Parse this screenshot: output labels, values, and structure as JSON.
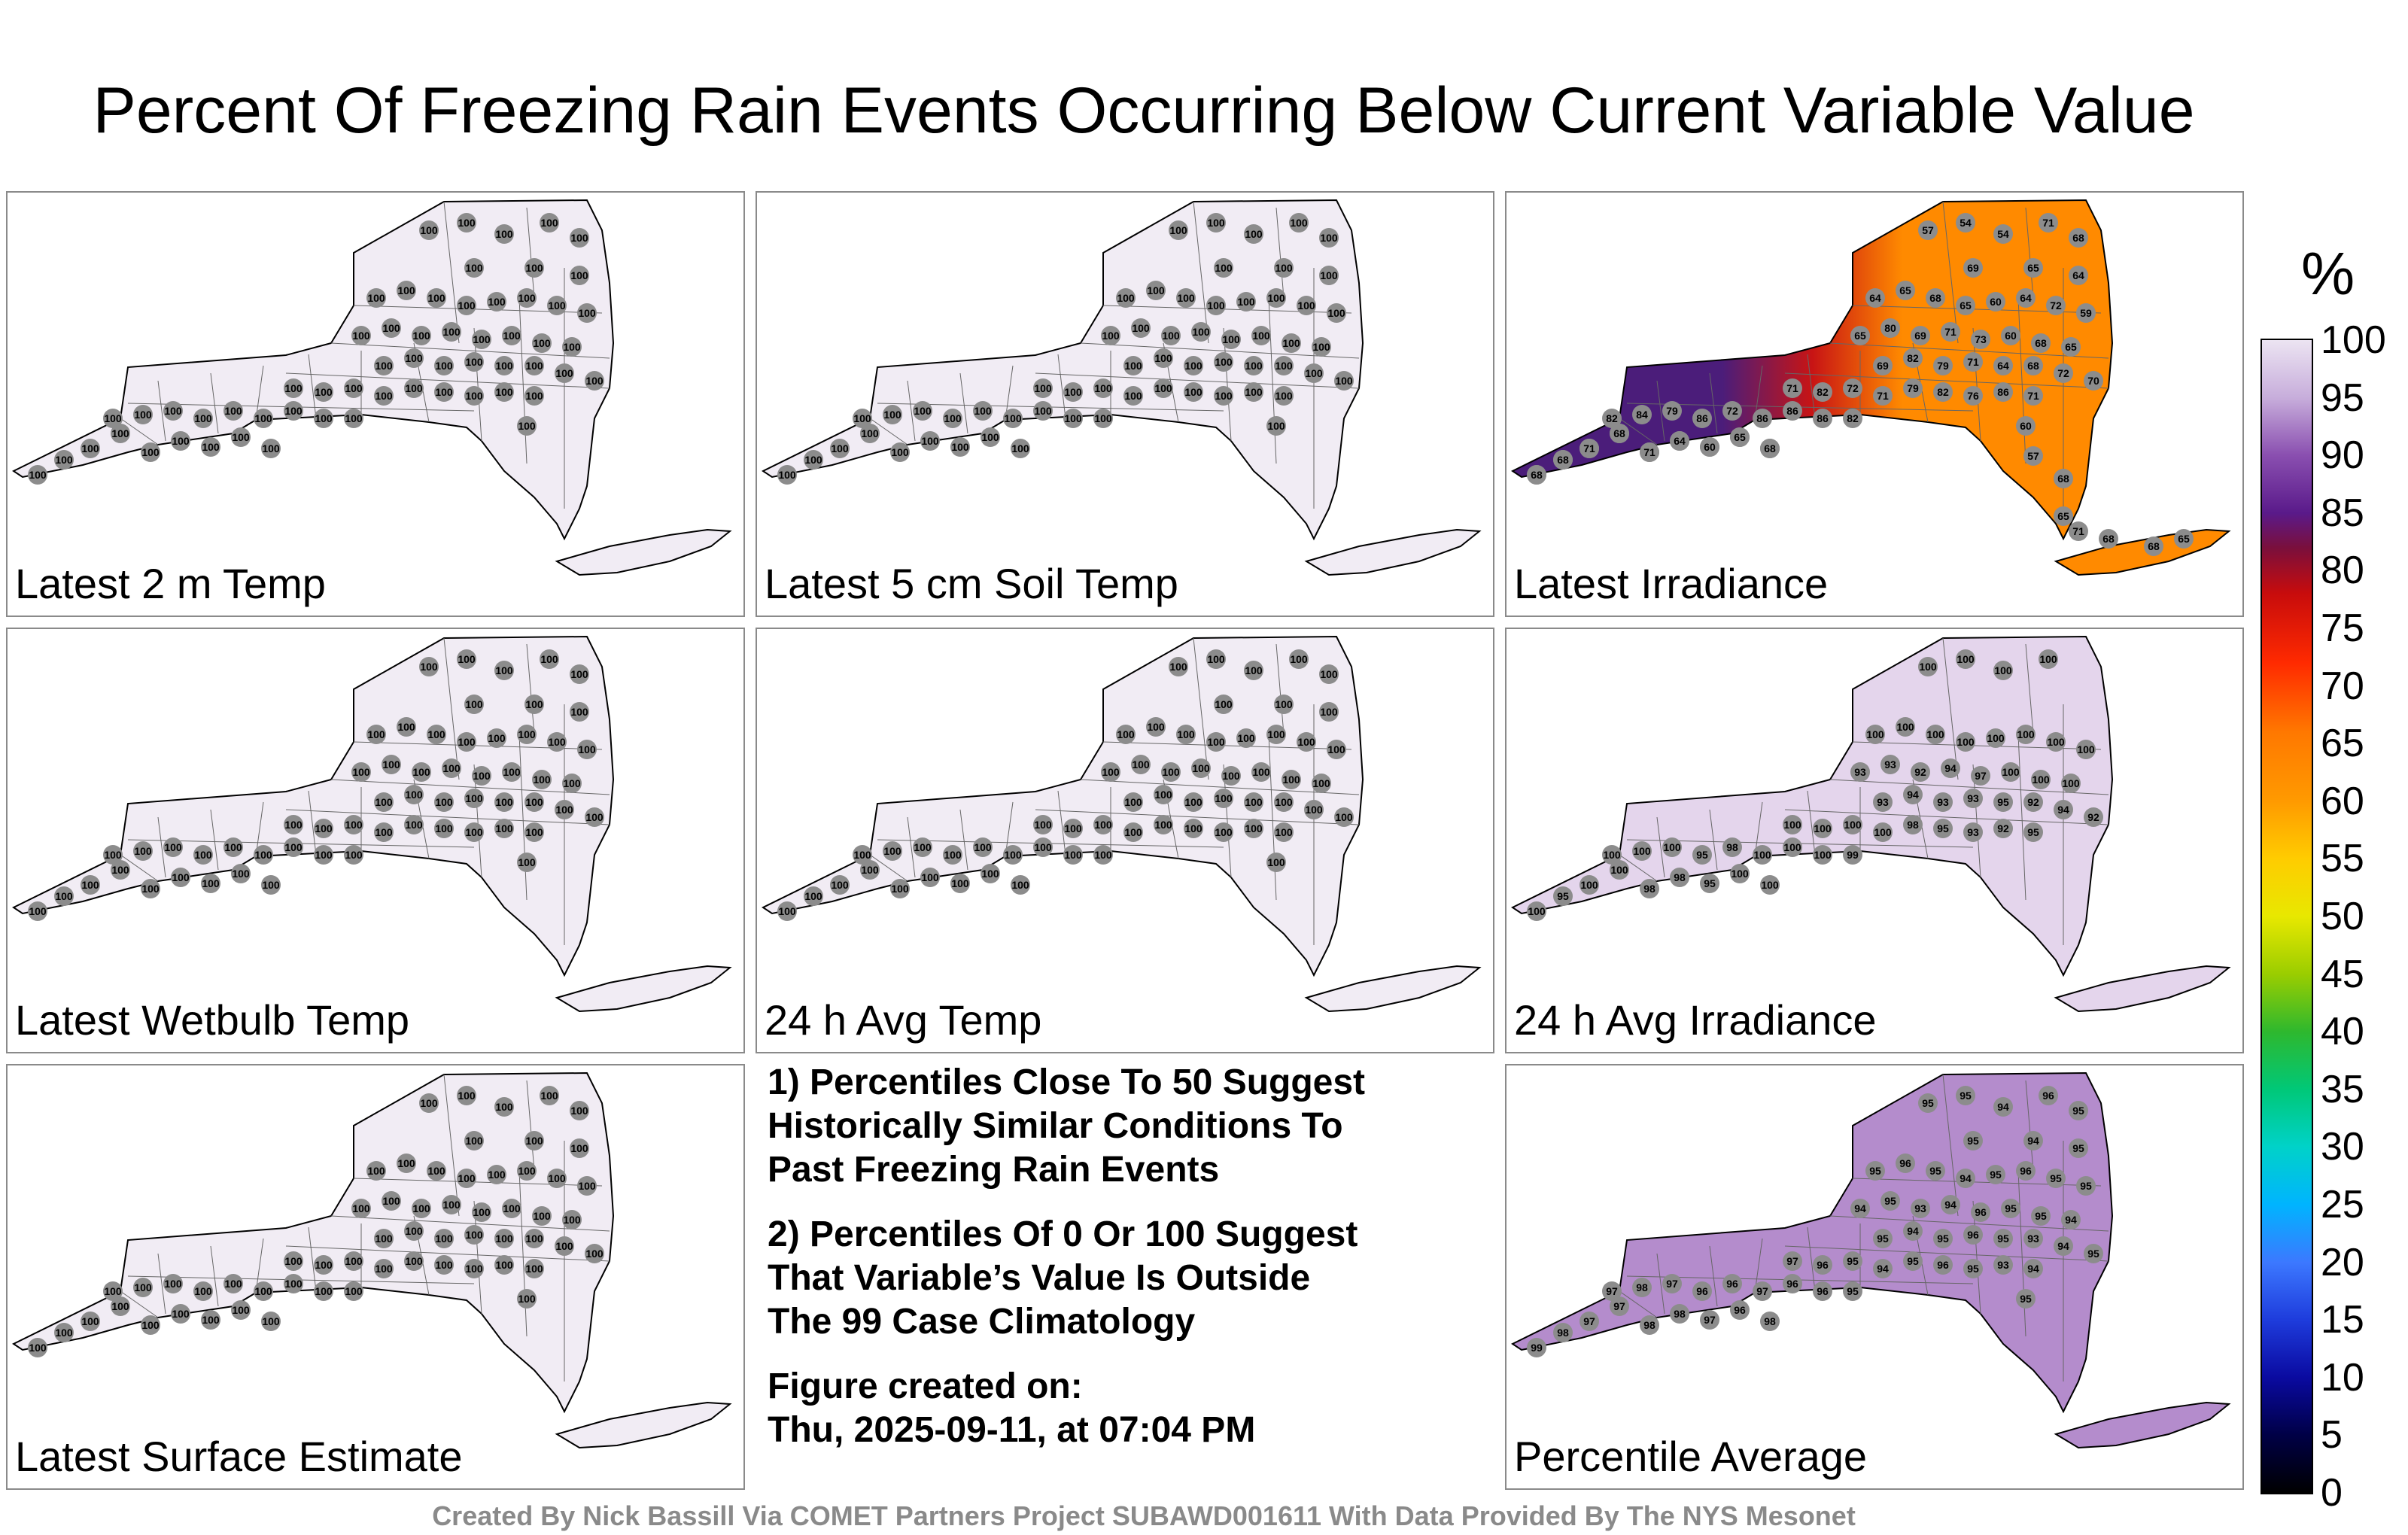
{
  "title": "Percent Of Freezing Rain Events Occurring Below Current Variable Value",
  "panels": [
    {
      "label": "Latest 2 m Temp",
      "fill": "#f1ecf4",
      "value_labels": [
        "100",
        "100",
        "100",
        "100",
        "100",
        "100",
        "100",
        "100",
        "100",
        "100",
        "100",
        "100",
        "100",
        "100",
        "100",
        "100",
        "100",
        "100",
        "100",
        "100",
        "100",
        "100",
        "100",
        "100",
        "100",
        "100",
        "100",
        "100",
        "100",
        "100",
        "100",
        "100",
        "100",
        "100",
        "100",
        "100",
        "100",
        "100",
        "100",
        "100",
        "100",
        "100",
        "100",
        "100",
        "100",
        "100",
        "100",
        "100",
        "100",
        "100",
        "100",
        "100",
        "100",
        "100",
        "100",
        "100",
        "100",
        "100",
        "100",
        "100"
      ]
    },
    {
      "label": "Latest 5 cm Soil Temp",
      "fill": "#f1ecf4",
      "value_labels": [
        "100",
        "100",
        "100",
        "100",
        "100",
        "100",
        "100",
        "100",
        "100",
        "100",
        "100",
        "100",
        "100",
        "100",
        "100",
        "100",
        "100",
        "100",
        "100",
        "100",
        "100",
        "100",
        "100",
        "100",
        "100",
        "100",
        "100",
        "100",
        "100",
        "100",
        "100",
        "100",
        "100",
        "100",
        "100",
        "100",
        "100",
        "100",
        "100",
        "100",
        "100",
        "100",
        "100",
        "100",
        "100",
        "100",
        "100",
        "100",
        "100",
        "100",
        "100",
        "100",
        "100",
        "100",
        "100",
        "100",
        "100",
        "100",
        "100",
        "100"
      ]
    },
    {
      "label": "Latest Irradiance",
      "fill": "#ff7a00",
      "value_labels": [
        "91",
        "89",
        "87",
        "89",
        "79",
        "89",
        "86",
        "86",
        "86",
        "82",
        "84",
        "79",
        "86",
        "72",
        "86",
        "86",
        "86",
        "82",
        "71",
        "82",
        "72",
        "71",
        "79",
        "82",
        "76",
        "86",
        "71",
        "69",
        "82",
        "79",
        "71",
        "64",
        "68",
        "72",
        "70",
        "65",
        "80",
        "69",
        "71",
        "73",
        "60",
        "68",
        "65",
        "64",
        "65",
        "68",
        "65",
        "60",
        "64",
        "72",
        "59",
        "57",
        "54",
        "54",
        "71",
        "68",
        "69",
        "65",
        "64",
        "60",
        "57",
        "68",
        "65",
        "71",
        "68",
        "68",
        "65",
        "68",
        "68",
        "71",
        "68",
        "71",
        "64",
        "60",
        "65",
        "68"
      ]
    },
    {
      "label": "Latest Wetbulb Temp",
      "fill": "#f1ecf4",
      "value_labels": [
        "100",
        "100",
        "100",
        "100",
        "100",
        "100",
        "100",
        "100",
        "100",
        "100",
        "100",
        "100",
        "100",
        "100",
        "100",
        "100",
        "100",
        "100",
        "100",
        "100",
        "100",
        "100",
        "100",
        "100",
        "100",
        "100",
        "100",
        "100",
        "100",
        "100",
        "100",
        "100",
        "100",
        "100",
        "100",
        "100",
        "100",
        "100",
        "100",
        "100",
        "100",
        "100",
        "100",
        "100",
        "100",
        "100",
        "100",
        "100",
        "100",
        "100",
        "100",
        "100",
        "100",
        "100",
        "100",
        "100",
        "100",
        "100",
        "100",
        "100"
      ]
    },
    {
      "label": "24 h Avg Temp",
      "fill": "#f1ecf4",
      "value_labels": [
        "100",
        "100",
        "100",
        "100",
        "100",
        "100",
        "100",
        "100",
        "100",
        "100",
        "100",
        "100",
        "100",
        "100",
        "100",
        "100",
        "100",
        "100",
        "100",
        "100",
        "100",
        "100",
        "100",
        "100",
        "100",
        "100",
        "100",
        "100",
        "100",
        "100",
        "100",
        "100",
        "100",
        "100",
        "100",
        "100",
        "100",
        "100",
        "100",
        "100",
        "100",
        "100",
        "100",
        "100",
        "100",
        "100",
        "100",
        "100",
        "100",
        "100",
        "100",
        "100",
        "100",
        "100",
        "100",
        "100",
        "100",
        "100",
        "100",
        "100"
      ]
    },
    {
      "label": "24 h Avg Irradiance",
      "fill": "#e4d5ec",
      "value_labels": [
        "100",
        "95",
        "100",
        "100",
        "98",
        "98",
        "95",
        "100",
        "100",
        "100",
        "100",
        "100",
        "95",
        "98",
        "100",
        "100",
        "100",
        "99",
        "100",
        "100",
        "100",
        "100",
        "98",
        "95",
        "93",
        "92",
        "95",
        "93",
        "94",
        "93",
        "93",
        "95",
        "92",
        "94",
        "92",
        "93",
        "93",
        "92",
        "94",
        "97",
        "100",
        "100",
        "100",
        "100",
        "100",
        "100",
        "100",
        "100",
        "100",
        "100",
        "100",
        "100",
        "100",
        "100",
        "100"
      ]
    },
    {
      "label": "Latest Surface Estimate",
      "fill": "#f1ecf4",
      "value_labels": [
        "100",
        "100",
        "100",
        "100",
        "100",
        "100",
        "100",
        "100",
        "100",
        "100",
        "100",
        "100",
        "100",
        "100",
        "100",
        "100",
        "100",
        "100",
        "100",
        "100",
        "100",
        "100",
        "100",
        "100",
        "100",
        "100",
        "100",
        "100",
        "100",
        "100",
        "100",
        "100",
        "100",
        "100",
        "100",
        "100",
        "100",
        "100",
        "100",
        "100",
        "100",
        "100",
        "100",
        "100",
        "100",
        "100",
        "100",
        "100",
        "100",
        "100",
        "100",
        "100",
        "100",
        "100",
        "100",
        "100",
        "100",
        "100",
        "100",
        "100"
      ]
    },
    {
      "label": "Percentile Average",
      "fill": "#b48ccc",
      "value_labels": [
        "99",
        "98",
        "97",
        "97",
        "98",
        "98",
        "97",
        "96",
        "98",
        "97",
        "98",
        "97",
        "96",
        "96",
        "97",
        "96",
        "96",
        "95",
        "97",
        "96",
        "95",
        "94",
        "95",
        "96",
        "95",
        "93",
        "94",
        "95",
        "94",
        "95",
        "96",
        "95",
        "93",
        "94",
        "95",
        "94",
        "95",
        "93",
        "94",
        "96",
        "95",
        "95",
        "94",
        "95",
        "96",
        "95",
        "94",
        "95",
        "96",
        "95",
        "95",
        "95",
        "95",
        "94",
        "96",
        "95",
        "95",
        "94",
        "95",
        "95"
      ]
    }
  ],
  "notes": {
    "note1": "1) Percentiles Close To 50 Suggest\nHistorically Similar Conditions To\nPast Freezing Rain Events",
    "note2": "2) Percentiles Of 0 Or 100 Suggest\nThat Variable’s Value Is Outside\nThe 99 Case Climatology",
    "created": "Figure created on:\nThu, 2025-09-11, at 07:04 PM"
  },
  "colorbar": {
    "unit": "%",
    "ticks": [
      "100",
      "95",
      "90",
      "85",
      "80",
      "75",
      "70",
      "65",
      "60",
      "55",
      "50",
      "45",
      "40",
      "35",
      "30",
      "25",
      "20",
      "15",
      "10",
      "5",
      "0"
    ]
  },
  "footer": "Created By Nick Bassill Via COMET Partners Project SUBAWD001611 With Data Provided By The NYS Mesonet",
  "colors": {
    "station_dot": "#8c8c8c",
    "uniform_fill": "#f1ecf4",
    "irradiance_west": "#4b1d7a",
    "irradiance_mid": "#c81414",
    "irradiance_east": "#ff8a00"
  }
}
